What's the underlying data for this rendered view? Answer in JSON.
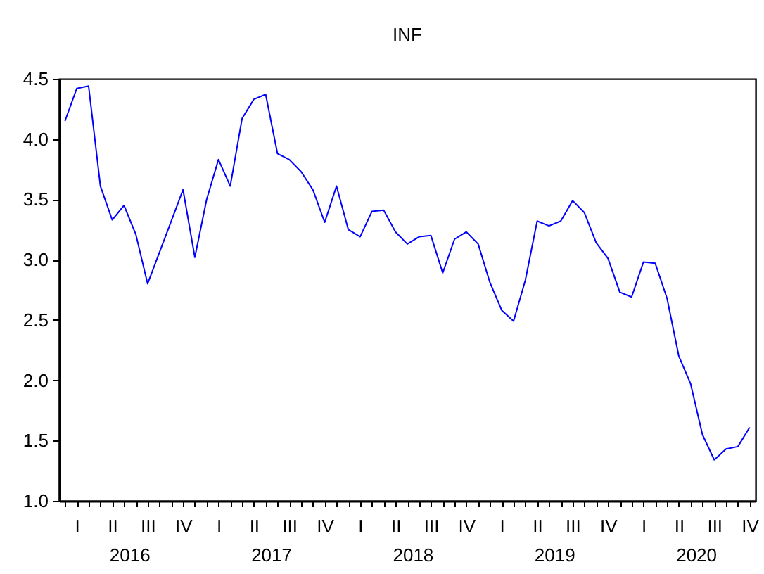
{
  "chart_data": {
    "type": "line",
    "title": "INF",
    "categories": [
      null,
      "I",
      null,
      null,
      "II",
      null,
      null,
      "III",
      null,
      null,
      "IV",
      null,
      null,
      "I",
      null,
      null,
      "II",
      null,
      null,
      "III",
      null,
      null,
      "IV",
      null,
      null,
      "I",
      null,
      null,
      "II",
      null,
      null,
      "III",
      null,
      null,
      "IV",
      null,
      null,
      "I",
      null,
      null,
      "II",
      null,
      null,
      "III",
      null,
      null,
      "IV",
      null,
      null,
      "I",
      null,
      null,
      "II",
      null,
      null,
      "III",
      null,
      null,
      "IV"
    ],
    "series": [
      {
        "color": "#0000ff",
        "values": [
          4.15,
          4.42,
          4.44,
          3.61,
          3.33,
          3.45,
          3.21,
          2.8,
          3.06,
          3.32,
          3.58,
          3.02,
          3.5,
          3.83,
          3.61,
          4.17,
          4.33,
          4.37,
          3.88,
          3.83,
          3.73,
          3.58,
          3.31,
          3.61,
          3.25,
          3.19,
          3.4,
          3.41,
          3.23,
          3.13,
          3.19,
          3.2,
          2.89,
          3.17,
          3.23,
          3.13,
          2.81,
          2.58,
          2.49,
          2.83,
          3.32,
          3.28,
          3.32,
          3.49,
          3.39,
          3.14,
          3.01,
          2.73,
          2.69,
          2.98,
          2.97,
          2.68,
          2.2,
          1.97,
          1.55,
          1.34,
          1.43,
          1.45,
          1.61
        ]
      }
    ],
    "annotations": [
      "2016",
      "2017",
      "2018",
      "2019",
      "2020"
    ],
    "ylim": [
      1,
      4.5
    ],
    "yticks": [
      {
        "value": 1,
        "label": "1.0"
      },
      {
        "value": 1.5,
        "label": "1.5"
      },
      {
        "value": 2,
        "label": "2.0"
      },
      {
        "value": 2.5,
        "label": "2.5"
      },
      {
        "value": 3,
        "label": "3.0"
      },
      {
        "value": 3.5,
        "label": "3.5"
      },
      {
        "value": 4,
        "label": "4.0"
      },
      {
        "value": 4.5,
        "label": "4.5"
      }
    ],
    "grid": false
  }
}
